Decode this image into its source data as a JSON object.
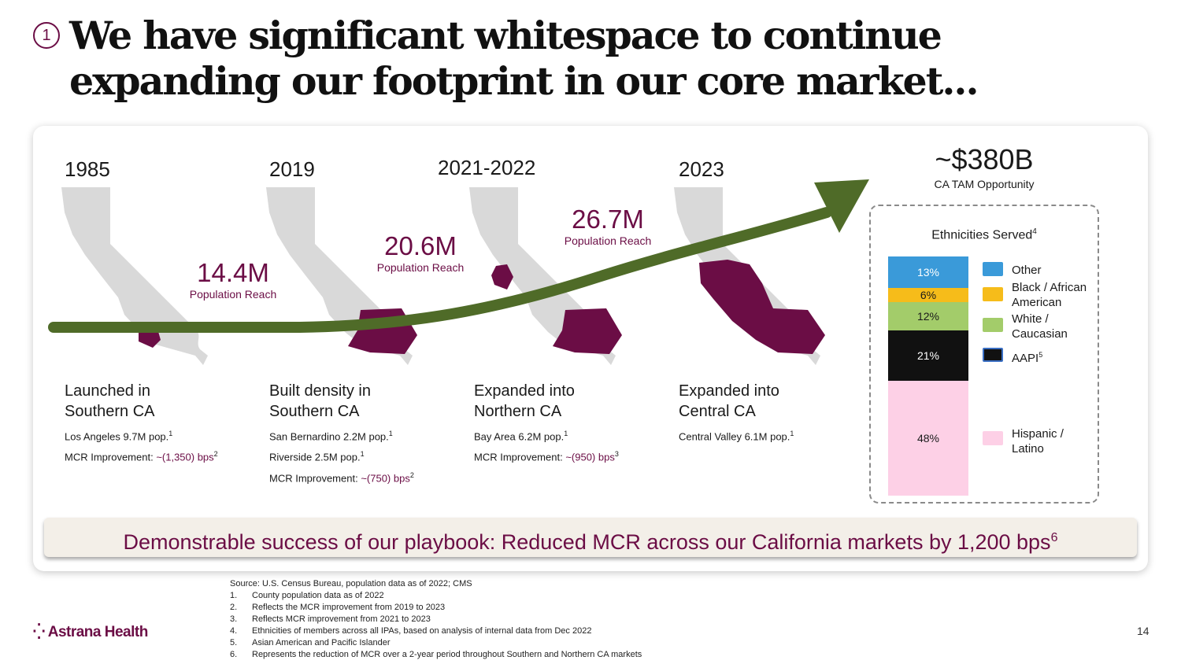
{
  "title": {
    "number": "1",
    "text": "We have significant whitespace to continue expanding our footprint in our core market..."
  },
  "timeline": [
    {
      "year": "1985",
      "headline_1": "Launched in",
      "headline_2": "Southern CA",
      "detail_1_text": "Los Angeles 9.7M pop.",
      "detail_1_sup": "1",
      "detail_2_text": "MCR Improvement: ",
      "detail_2_value": "~(1,350) bps",
      "detail_2_sup": "2"
    },
    {
      "year": "2019",
      "headline_1": "Built density in",
      "headline_2": "Southern CA",
      "detail_1_text": "San Bernardino 2.2M pop.",
      "detail_1_sup": "1",
      "detail_2_text": "Riverside 2.5M pop.",
      "detail_2_sup": "1",
      "detail_3_text": "MCR Improvement: ",
      "detail_3_value": "~(750) bps",
      "detail_3_sup": "2"
    },
    {
      "year": "2021-2022",
      "headline_1": "Expanded into",
      "headline_2": "Northern CA",
      "detail_1_text": "Bay Area 6.2M pop.",
      "detail_1_sup": "1",
      "detail_2_text": "MCR Improvement: ",
      "detail_2_value": "~(950) bps",
      "detail_2_sup": "3"
    },
    {
      "year": "2023",
      "headline_1": "Expanded into",
      "headline_2": "Central CA",
      "detail_1_text": "Central Valley 6.1M pop.",
      "detail_1_sup": "1"
    }
  ],
  "reach": [
    {
      "value": "14.4M",
      "label": "Population Reach"
    },
    {
      "value": "20.6M",
      "label": "Population Reach"
    },
    {
      "value": "26.7M",
      "label": "Population Reach"
    }
  ],
  "tam": {
    "value": "~$380B",
    "label": "CA TAM Opportunity"
  },
  "ethnicities": {
    "title": "Ethnicities Served",
    "title_sup": "4",
    "segments": [
      {
        "label": "13%",
        "share": 13,
        "color": "#3a9ad9"
      },
      {
        "label": "6%",
        "share": 6,
        "color": "#f6bc1a"
      },
      {
        "label": "12%",
        "share": 12,
        "color": "#a3cc6a"
      },
      {
        "label": "21%",
        "share": 21,
        "color": "#111111"
      },
      {
        "label": "48%",
        "share": 48,
        "color": "#fdd0e6"
      }
    ],
    "legend": [
      {
        "line1": "Other",
        "line2": "",
        "color": "#3a9ad9"
      },
      {
        "line1": "Black / African",
        "line2": "American",
        "color": "#f6bc1a"
      },
      {
        "line1": "White /",
        "line2": "Caucasian",
        "color": "#a3cc6a"
      },
      {
        "line1": "AAPI",
        "line1_sup": "5",
        "line2": "",
        "color": "#111111"
      },
      {
        "line1": "Hispanic /",
        "line2": "Latino",
        "color": "#fdd0e6"
      }
    ]
  },
  "banner": {
    "text": "Demonstrable success of our playbook: Reduced MCR across our California markets by 1,200 bps",
    "sup": "6"
  },
  "footnotes": {
    "source": "Source: U.S. Census Bureau, population data as of 2022; CMS",
    "items": [
      {
        "num": "1.",
        "text": "County population data as of 2022"
      },
      {
        "num": "2.",
        "text": "Reflects the MCR improvement from 2019 to 2023"
      },
      {
        "num": "3.",
        "text": "Reflects MCR improvement from 2021 to 2023"
      },
      {
        "num": "4.",
        "text": "Ethnicities of members across all IPAs, based on analysis of internal data from Dec 2022"
      },
      {
        "num": "5.",
        "text": "Asian American and Pacific Islander"
      },
      {
        "num": "6.",
        "text": "Represents the reduction of MCR over a 2-year period throughout Southern and Northern CA markets"
      }
    ]
  },
  "logo": {
    "mark": "⁛",
    "text": "Astrana Health"
  },
  "page_number": "14",
  "colors": {
    "brand": "#6b0d45",
    "arrow": "#4f6b28",
    "map": "#d9d9d9"
  }
}
